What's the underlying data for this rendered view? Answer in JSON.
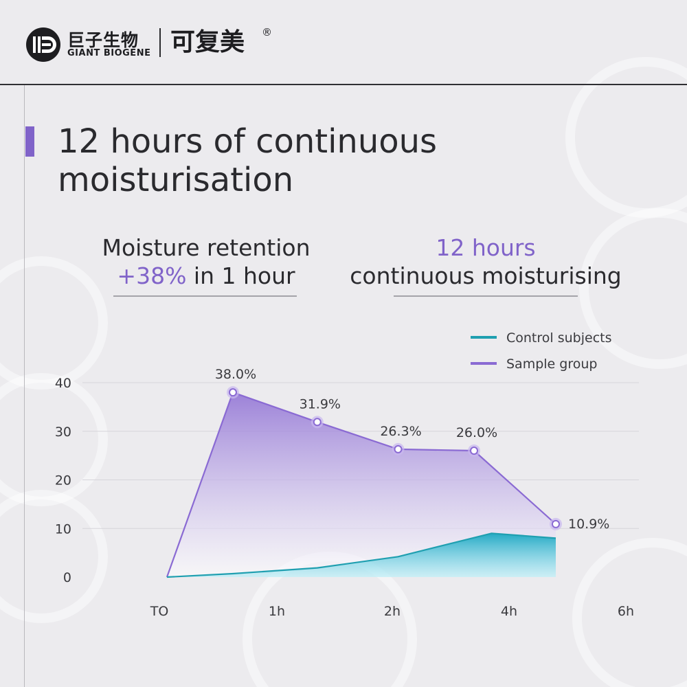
{
  "brand": {
    "name_cn": "巨子生物",
    "name_en": "GIANT BIOGENE",
    "product_cn": "可复美",
    "registered": "®"
  },
  "title": "12 hours of continuous moisturisation",
  "highlights": {
    "left": {
      "line1": "Moisture retention",
      "accent": "+38%",
      "rest": " in 1 hour"
    },
    "right": {
      "accent": "12 hours",
      "line2": "continuous moisturising"
    }
  },
  "colors": {
    "accent": "#8063c9",
    "sample": "#8a6ad3",
    "control": "#1f9fb0"
  },
  "chart_data": {
    "type": "area",
    "title": "",
    "xlabel": "",
    "ylabel": "",
    "ylim": [
      0,
      40
    ],
    "yticks": [
      "0",
      "10",
      "20",
      "30",
      "40"
    ],
    "xticks": [
      "TO",
      "1h",
      "2h",
      "4h",
      "6h"
    ],
    "grid": true,
    "legend_position": "top-right",
    "series": [
      {
        "name": "Control subjects",
        "color": "#1f9fb0",
        "points": [
          [
            0,
            0
          ],
          [
            0.6,
            0.7
          ],
          [
            1.35,
            1.9
          ],
          [
            2.05,
            4.2
          ],
          [
            2.85,
            9.0
          ],
          [
            3.4,
            8.0
          ]
        ]
      },
      {
        "name": "Sample group",
        "color": "#8a6ad3",
        "points": [
          [
            0,
            0
          ],
          [
            0.6,
            38.0
          ],
          [
            1.35,
            31.9
          ],
          [
            2.05,
            26.3
          ],
          [
            2.7,
            26.0
          ],
          [
            3.4,
            10.9
          ]
        ],
        "labels": [
          null,
          "38.0%",
          "31.9%",
          "26.3%",
          "26.0%",
          "10.9%"
        ]
      }
    ]
  }
}
